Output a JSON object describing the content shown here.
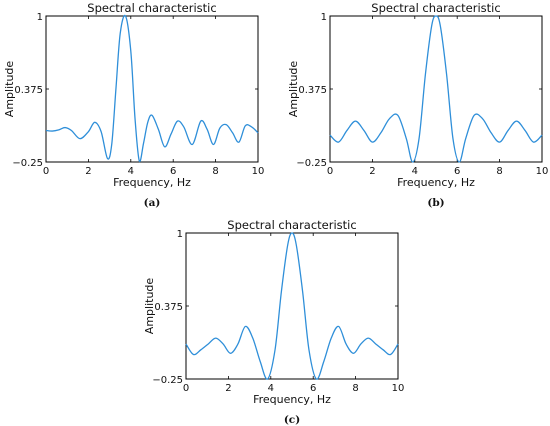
{
  "colors": {
    "line": "#2f8fd9"
  },
  "chart_data": [
    {
      "type": "line",
      "panel_label": "(a)",
      "title": "Spectral characteristic",
      "xlabel": "Frequency, Hz",
      "ylabel": "Amplitude",
      "xlim": [
        0,
        10
      ],
      "ylim": [
        -0.25,
        1
      ],
      "xticks": [
        "0",
        "2",
        "4",
        "6",
        "8",
        "10"
      ],
      "yticks": [
        "−0.25",
        "0.375",
        "1"
      ],
      "series": [
        {
          "x": [
            0,
            0.3,
            0.6,
            0.9,
            1.2,
            1.6,
            2.0,
            2.3,
            2.6,
            2.9,
            3.1,
            3.3,
            3.5,
            3.75,
            4.0,
            4.2,
            4.4,
            4.6,
            4.8,
            5.0,
            5.3,
            5.6,
            5.9,
            6.2,
            6.5,
            6.9,
            7.3,
            7.6,
            7.9,
            8.2,
            8.5,
            8.8,
            9.1,
            9.4,
            9.7,
            10
          ],
          "y": [
            0.02,
            0.015,
            0.025,
            0.045,
            0.02,
            -0.05,
            0.01,
            0.09,
            0.01,
            -0.22,
            -0.1,
            0.38,
            0.85,
            1.0,
            0.7,
            0.12,
            -0.24,
            -0.09,
            0.09,
            0.15,
            0.03,
            -0.12,
            -0.01,
            0.1,
            0.05,
            -0.1,
            0.1,
            0.03,
            -0.1,
            0.04,
            0.07,
            0.0,
            -0.08,
            0.06,
            0.05,
            0.0
          ]
        }
      ]
    },
    {
      "type": "line",
      "panel_label": "(b)",
      "title": "Spectral characteristic",
      "xlabel": "Frequency, Hz",
      "ylabel": "Amplitude",
      "xlim": [
        0,
        10
      ],
      "ylim": [
        -0.25,
        1
      ],
      "xticks": [
        "0",
        "2",
        "4",
        "6",
        "8",
        "10"
      ],
      "yticks": [
        "−0.25",
        "0.375",
        "1"
      ],
      "series": [
        {
          "x": [
            0,
            0.4,
            0.8,
            1.2,
            1.6,
            2.0,
            2.4,
            2.8,
            3.2,
            3.6,
            3.9,
            4.2,
            4.5,
            4.8,
            5.0,
            5.2,
            5.5,
            5.8,
            6.1,
            6.4,
            6.8,
            7.2,
            7.6,
            8.0,
            8.4,
            8.8,
            9.2,
            9.6,
            10
          ],
          "y": [
            -0.02,
            -0.08,
            0.02,
            0.1,
            0.02,
            -0.08,
            0.0,
            0.12,
            0.15,
            -0.05,
            -0.25,
            -0.05,
            0.5,
            0.92,
            1.0,
            0.92,
            0.5,
            -0.05,
            -0.25,
            -0.05,
            0.15,
            0.12,
            0.0,
            -0.08,
            0.02,
            0.1,
            0.02,
            -0.08,
            -0.02
          ]
        }
      ]
    },
    {
      "type": "line",
      "panel_label": "(c)",
      "title": "Spectral characteristic",
      "xlabel": "Frequency, Hz",
      "ylabel": "Amplitude",
      "xlim": [
        0,
        10
      ],
      "ylim": [
        -0.25,
        1
      ],
      "xticks": [
        "0",
        "2",
        "4",
        "6",
        "8",
        "10"
      ],
      "yticks": [
        "−0.25",
        "0.375",
        "1"
      ],
      "series": [
        {
          "x": [
            0,
            0.35,
            0.7,
            1.05,
            1.4,
            1.75,
            2.1,
            2.45,
            2.8,
            3.15,
            3.5,
            3.85,
            4.2,
            4.5,
            4.8,
            5.0,
            5.2,
            5.5,
            5.8,
            6.15,
            6.5,
            6.85,
            7.2,
            7.55,
            7.9,
            8.25,
            8.6,
            8.95,
            9.3,
            9.65,
            10
          ],
          "y": [
            0.05,
            -0.04,
            0.0,
            0.05,
            0.1,
            0.05,
            -0.03,
            0.05,
            0.2,
            0.1,
            -0.1,
            -0.25,
            0.0,
            0.5,
            0.9,
            1.0,
            0.9,
            0.5,
            0.0,
            -0.25,
            -0.1,
            0.1,
            0.2,
            0.05,
            -0.03,
            0.05,
            0.1,
            0.05,
            0.0,
            -0.04,
            0.05
          ]
        }
      ]
    }
  ]
}
